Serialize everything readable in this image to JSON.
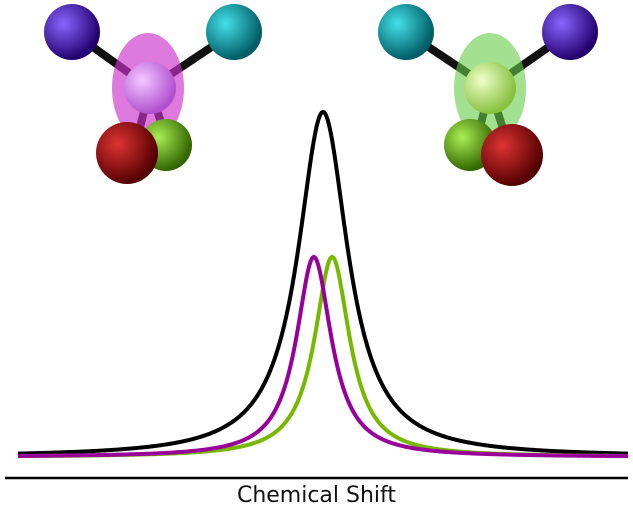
{
  "chart_data": {
    "type": "line",
    "title": "",
    "xlabel": "Chemical Shift",
    "ylabel": "",
    "grid": false,
    "legend": "none",
    "x_ticks": "none",
    "y_ticks": "none",
    "series": [
      {
        "color": "#000000",
        "shape": "lorentzian",
        "center": 0.0,
        "height": 1.0,
        "half_width": 0.1
      },
      {
        "color": "#990099",
        "shape": "lorentzian",
        "center": -0.03,
        "height": 0.58,
        "half_width": 0.07
      },
      {
        "color": "#77b800",
        "shape": "lorentzian",
        "center": 0.03,
        "height": 0.58,
        "half_width": 0.07
      }
    ],
    "xlim": [
      -1,
      1
    ],
    "ylim": [
      0,
      1.02
    ]
  },
  "molecules": [
    {
      "name": "left-enantiomer",
      "highlight_color": "#cc33cc",
      "center_color": "#e090f0",
      "atoms": [
        "#440099",
        "#11aaaa",
        "#aa0000",
        "#66bb00"
      ]
    },
    {
      "name": "right-enantiomer",
      "highlight_color": "#66cc44",
      "center_color": "#c8f0a0",
      "atoms": [
        "#11aaaa",
        "#440099",
        "#aa0000",
        "#66bb00"
      ]
    }
  ]
}
